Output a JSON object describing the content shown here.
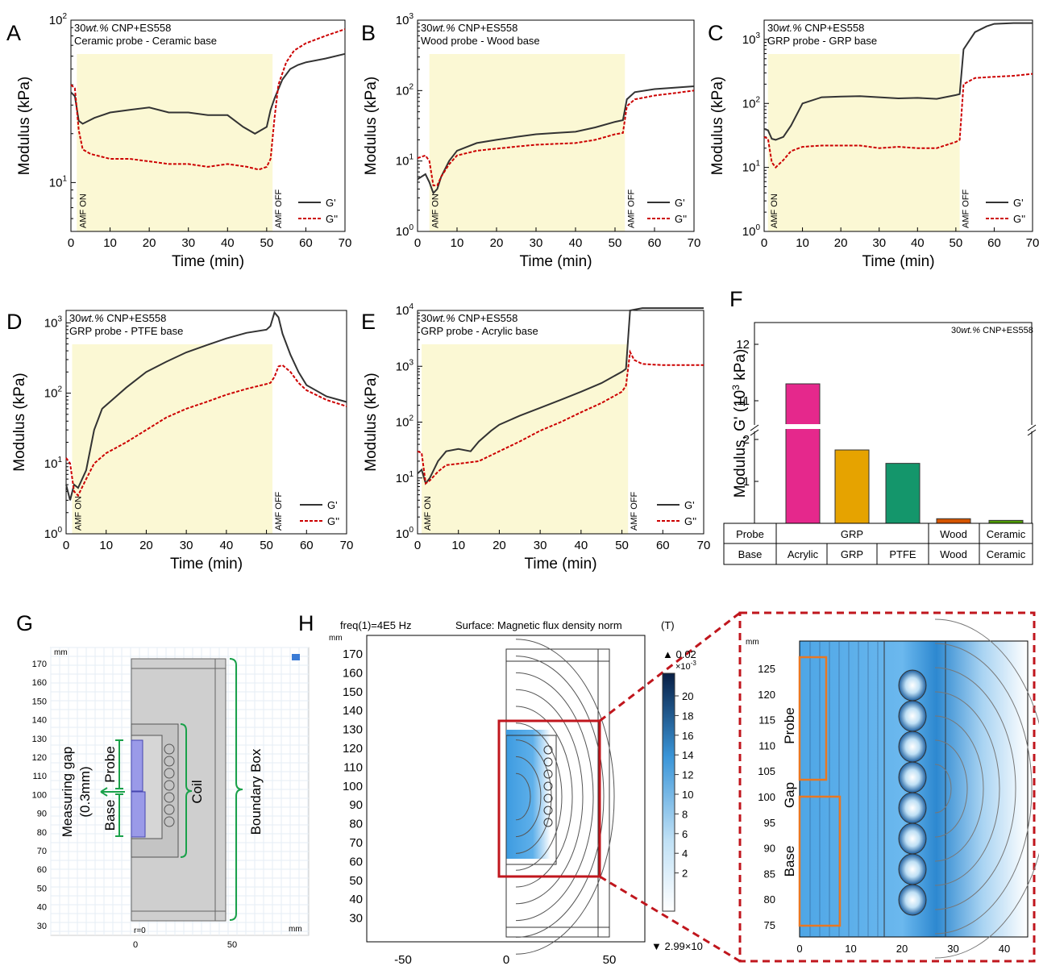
{
  "panels": {
    "A": {
      "letter": "A",
      "ann1_pre": "30",
      "ann1_em": "wt.%",
      "ann1_post": " CNP+ES558",
      "ann2": "Ceramic probe - Ceramic base",
      "ylabel": "Modulus (kPa)",
      "xlabel": "Time (min)",
      "amf_on": "AMF ON",
      "amf_off": "AMF OFF",
      "legend": [
        "G'",
        "G''"
      ]
    },
    "B": {
      "letter": "B",
      "ann1_pre": "30",
      "ann1_em": "wt.%",
      "ann1_post": " CNP+ES558",
      "ann2": "Wood probe - Wood base",
      "ylabel": "Modulus (kPa)",
      "xlabel": "Time (min)",
      "amf_on": "AMF ON",
      "amf_off": "AMF OFF",
      "legend": [
        "G'",
        "G''"
      ]
    },
    "C": {
      "letter": "C",
      "ann1_pre": "30",
      "ann1_em": "wt.%",
      "ann1_post": " CNP+ES558",
      "ann2": "GRP probe - GRP base",
      "ylabel": "Modulus (kPa)",
      "xlabel": "Time (min)",
      "amf_on": "AMF ON",
      "amf_off": "AMF OFF",
      "legend": [
        "G'",
        "G''"
      ]
    },
    "D": {
      "letter": "D",
      "ann1_pre": "30",
      "ann1_em": "wt.%",
      "ann1_post": " CNP+ES558",
      "ann2": "GRP probe - PTFE base",
      "ylabel": "Modulus (kPa)",
      "xlabel": "Time (min)",
      "amf_on": "AMF ON",
      "amf_off": "AMF OFF",
      "legend": [
        "G'",
        "G''"
      ]
    },
    "E": {
      "letter": "E",
      "ann1_pre": "30",
      "ann1_em": "wt.%",
      "ann1_post": " CNP+ES558",
      "ann2": "GRP probe - Acrylic base",
      "ylabel": "Modulus (kPa)",
      "xlabel": "Time (min)",
      "amf_on": "AMF ON",
      "amf_off": "AMF OFF",
      "legend": [
        "G'",
        "G''"
      ]
    },
    "F": {
      "letter": "F",
      "ann_pre": "30",
      "ann_em": "wt.%",
      "ann_post": " CNP+ES558",
      "ylabel_pre": "Modulus, G' (10",
      "ylabel_sup": "3",
      "ylabel_post": " kPa)",
      "table": {
        "row1_header": "Probe",
        "row2_header": "Base",
        "probe_grp": "GRP",
        "probe_wood": "Wood",
        "probe_ceramic": "Ceramic",
        "bases": [
          "Acrylic",
          "GRP",
          "PTFE",
          "Wood",
          "Ceramic"
        ]
      }
    },
    "G": {
      "letter": "G",
      "unit_top": "mm",
      "unit_right": "mm",
      "origin_label": "r=0",
      "yticks": [
        "170",
        "160",
        "150",
        "140",
        "130",
        "120",
        "110",
        "100",
        "90",
        "80",
        "70",
        "60",
        "50",
        "40",
        "30"
      ],
      "xticks": [
        "0",
        "50"
      ],
      "labels": {
        "probe": "Probe",
        "base": "Base",
        "coil": "Coil",
        "boundary_box": "Boundary Box",
        "gap_line1": "Measuring gap",
        "gap_line2": "(0.3mm)"
      }
    },
    "H": {
      "letter": "H",
      "header_left": "freq(1)=4E5 Hz",
      "header_mid": "Surface: Magnetic flux density norm",
      "unit": "(T)",
      "axis_unit": "mm",
      "yticks": [
        "170",
        "160",
        "150",
        "140",
        "130",
        "120",
        "110",
        "100",
        "90",
        "80",
        "70",
        "60",
        "50",
        "40",
        "30"
      ],
      "xticks": [
        "-50",
        "0",
        "50"
      ],
      "colorbar": {
        "max_label": "0.02",
        "scale_label": "×10",
        "scale_exp": "-3",
        "min_label": "2.99×10",
        "ticks": [
          "20",
          "18",
          "16",
          "14",
          "12",
          "10",
          "8",
          "6",
          "4",
          "2"
        ]
      },
      "zoom": {
        "axis_unit": "mm",
        "yticks": [
          "125",
          "120",
          "115",
          "110",
          "105",
          "100",
          "95",
          "90",
          "85",
          "80",
          "75"
        ],
        "xticks": [
          "0",
          "10",
          "20",
          "30",
          "40"
        ],
        "labels": {
          "probe": "Probe",
          "gap": "Gap",
          "base": "Base"
        }
      }
    }
  },
  "chart_data": [
    {
      "panel": "A",
      "type": "line",
      "xlabel": "Time (min)",
      "ylabel": "Modulus (kPa)",
      "xlim": [
        0,
        70
      ],
      "ylim": [
        5,
        100
      ],
      "yscale": "log",
      "xticks": [
        0,
        10,
        20,
        30,
        40,
        50,
        60,
        70
      ],
      "ytick_exponents": [
        1,
        2
      ],
      "amf_window": [
        1.5,
        51.5
      ],
      "series": [
        {
          "name": "G'",
          "style": "solid",
          "color": "#333333",
          "x": [
            0,
            1,
            2,
            3,
            6,
            10,
            15,
            20,
            25,
            30,
            35,
            40,
            44,
            47,
            50,
            51,
            52,
            54,
            56,
            58,
            60,
            65,
            70
          ],
          "y": [
            36,
            34,
            24,
            23,
            25,
            27,
            28,
            29,
            27,
            27,
            26,
            26,
            22,
            20,
            22,
            28,
            33,
            43,
            50,
            53,
            55,
            58,
            62
          ]
        },
        {
          "name": "G''",
          "style": "dashed",
          "color": "#cc0000",
          "x": [
            0,
            1,
            2,
            3,
            5,
            10,
            15,
            20,
            25,
            30,
            35,
            40,
            45,
            48,
            50,
            51,
            52,
            53,
            55,
            57,
            60,
            65,
            70
          ],
          "y": [
            40,
            38,
            21,
            16,
            15,
            14,
            14,
            13.5,
            13,
            13,
            12.5,
            13,
            12.5,
            12,
            12.5,
            14,
            25,
            40,
            55,
            65,
            72,
            80,
            88
          ]
        }
      ]
    },
    {
      "panel": "B",
      "type": "line",
      "xlabel": "Time (min)",
      "ylabel": "Modulus (kPa)",
      "xlim": [
        0,
        70
      ],
      "ylim": [
        1,
        1000
      ],
      "yscale": "log",
      "xticks": [
        0,
        10,
        20,
        30,
        40,
        50,
        60,
        70
      ],
      "ytick_exponents": [
        0,
        1,
        2,
        3
      ],
      "amf_window": [
        3,
        52.5
      ],
      "series": [
        {
          "name": "G'",
          "style": "solid",
          "color": "#333333",
          "x": [
            0,
            2,
            3,
            4,
            5,
            6,
            8,
            10,
            15,
            20,
            25,
            30,
            35,
            40,
            45,
            50,
            52,
            53,
            55,
            60,
            65,
            70
          ],
          "y": [
            5.5,
            6.5,
            5,
            3.5,
            4,
            6,
            10,
            14,
            18,
            20,
            22,
            24,
            25,
            26,
            30,
            36,
            38,
            75,
            95,
            105,
            110,
            115
          ]
        },
        {
          "name": "G''",
          "style": "dashed",
          "color": "#cc0000",
          "x": [
            0,
            2,
            3,
            4,
            5,
            6,
            8,
            10,
            15,
            20,
            25,
            30,
            35,
            40,
            45,
            50,
            52,
            53,
            55,
            60,
            65,
            70
          ],
          "y": [
            11,
            12,
            10,
            4.5,
            4.5,
            6,
            9,
            12,
            14,
            15,
            16,
            17,
            17.5,
            18,
            20,
            24,
            25,
            60,
            75,
            85,
            92,
            100
          ]
        }
      ]
    },
    {
      "panel": "C",
      "type": "line",
      "xlabel": "Time (min)",
      "ylabel": "Modulus (kPa)",
      "xlim": [
        0,
        70
      ],
      "ylim": [
        1,
        2000
      ],
      "yscale": "log",
      "xticks": [
        0,
        10,
        20,
        30,
        40,
        50,
        60,
        70
      ],
      "ytick_exponents": [
        0,
        1,
        2,
        3
      ],
      "amf_window": [
        1,
        51
      ],
      "series": [
        {
          "name": "G'",
          "style": "solid",
          "color": "#333333",
          "x": [
            0,
            1,
            2,
            3,
            5,
            7,
            10,
            15,
            20,
            25,
            30,
            35,
            40,
            45,
            50,
            51,
            52,
            55,
            58,
            60,
            65,
            70
          ],
          "y": [
            40,
            38,
            28,
            27,
            30,
            45,
            100,
            125,
            128,
            130,
            125,
            120,
            122,
            118,
            135,
            140,
            700,
            1300,
            1600,
            1750,
            1800,
            1800
          ]
        },
        {
          "name": "G''",
          "style": "dashed",
          "color": "#cc0000",
          "x": [
            0,
            1,
            2,
            3,
            5,
            7,
            10,
            15,
            20,
            25,
            30,
            35,
            40,
            45,
            50,
            51,
            52,
            55,
            60,
            65,
            70
          ],
          "y": [
            30,
            28,
            12,
            10,
            13,
            18,
            21,
            22,
            22,
            22,
            20,
            21,
            20,
            20,
            25,
            27,
            200,
            250,
            260,
            270,
            290
          ]
        }
      ]
    },
    {
      "panel": "D",
      "type": "line",
      "xlabel": "Time (min)",
      "ylabel": "Modulus (kPa)",
      "xlim": [
        0,
        70
      ],
      "ylim": [
        1,
        1500
      ],
      "yscale": "log",
      "xticks": [
        0,
        10,
        20,
        30,
        40,
        50,
        60,
        70
      ],
      "ytick_exponents": [
        0,
        1,
        2,
        3
      ],
      "amf_window": [
        1.5,
        51.5
      ],
      "series": [
        {
          "name": "G'",
          "style": "solid",
          "color": "#333333",
          "x": [
            0,
            1,
            2,
            3,
            5,
            7,
            9,
            12,
            15,
            20,
            25,
            30,
            35,
            40,
            45,
            50,
            51,
            52,
            53,
            54,
            56,
            58,
            60,
            65,
            70
          ],
          "y": [
            5,
            3,
            5,
            4.5,
            8,
            30,
            60,
            85,
            120,
            200,
            280,
            380,
            480,
            600,
            720,
            800,
            900,
            1400,
            1200,
            700,
            350,
            200,
            130,
            90,
            75
          ]
        },
        {
          "name": "G''",
          "style": "dashed",
          "color": "#cc0000",
          "x": [
            0,
            1,
            2,
            3,
            5,
            7,
            10,
            15,
            20,
            25,
            30,
            35,
            40,
            45,
            50,
            51,
            52,
            53,
            54,
            56,
            58,
            60,
            65,
            70
          ],
          "y": [
            12,
            10,
            4,
            3.5,
            6,
            10,
            14,
            20,
            30,
            45,
            60,
            75,
            95,
            115,
            135,
            140,
            170,
            240,
            250,
            200,
            140,
            110,
            80,
            65
          ]
        }
      ]
    },
    {
      "panel": "E",
      "type": "line",
      "xlabel": "Time (min)",
      "ylabel": "Modulus (kPa)",
      "xlim": [
        0,
        70
      ],
      "ylim": [
        1,
        10000
      ],
      "yscale": "log",
      "xticks": [
        0,
        10,
        20,
        30,
        40,
        50,
        60,
        70
      ],
      "ytick_exponents": [
        0,
        1,
        2,
        3,
        4
      ],
      "amf_window": [
        1,
        51.5
      ],
      "series": [
        {
          "name": "G'",
          "style": "solid",
          "color": "#333333",
          "x": [
            0,
            1,
            2,
            3,
            5,
            7,
            10,
            13,
            15,
            18,
            20,
            25,
            30,
            35,
            40,
            45,
            50,
            51,
            52,
            55,
            60,
            65,
            70
          ],
          "y": [
            12,
            14,
            8,
            10,
            20,
            30,
            33,
            30,
            45,
            70,
            90,
            130,
            180,
            250,
            350,
            500,
            800,
            900,
            10000,
            11000,
            11000,
            11000,
            11000
          ]
        },
        {
          "name": "G''",
          "style": "dashed",
          "color": "#cc0000",
          "x": [
            0,
            1,
            2,
            3,
            5,
            7,
            10,
            15,
            20,
            25,
            30,
            35,
            40,
            45,
            50,
            51,
            52,
            53,
            55,
            60,
            65,
            70
          ],
          "y": [
            30,
            28,
            8,
            9,
            13,
            17,
            18,
            20,
            30,
            45,
            70,
            100,
            150,
            220,
            350,
            450,
            1800,
            1300,
            1100,
            1050,
            1050,
            1050
          ]
        }
      ]
    },
    {
      "panel": "F",
      "type": "bar",
      "ylabel": "Modulus, G' (10^3 kPa)",
      "categories": [
        "GRP / Acrylic",
        "GRP / GRP",
        "GRP / PTFE",
        "Wood / Wood",
        "Ceramic / Ceramic"
      ],
      "values": [
        11.3,
        1.75,
        1.43,
        0.11,
        0.07
      ],
      "colors": [
        "#e5288c",
        "#e6a300",
        "#14966b",
        "#d45500",
        "#4e9a06"
      ],
      "yaxis_break": [
        2.1,
        10.6
      ],
      "yticks": [
        1,
        2,
        11,
        12
      ]
    }
  ]
}
